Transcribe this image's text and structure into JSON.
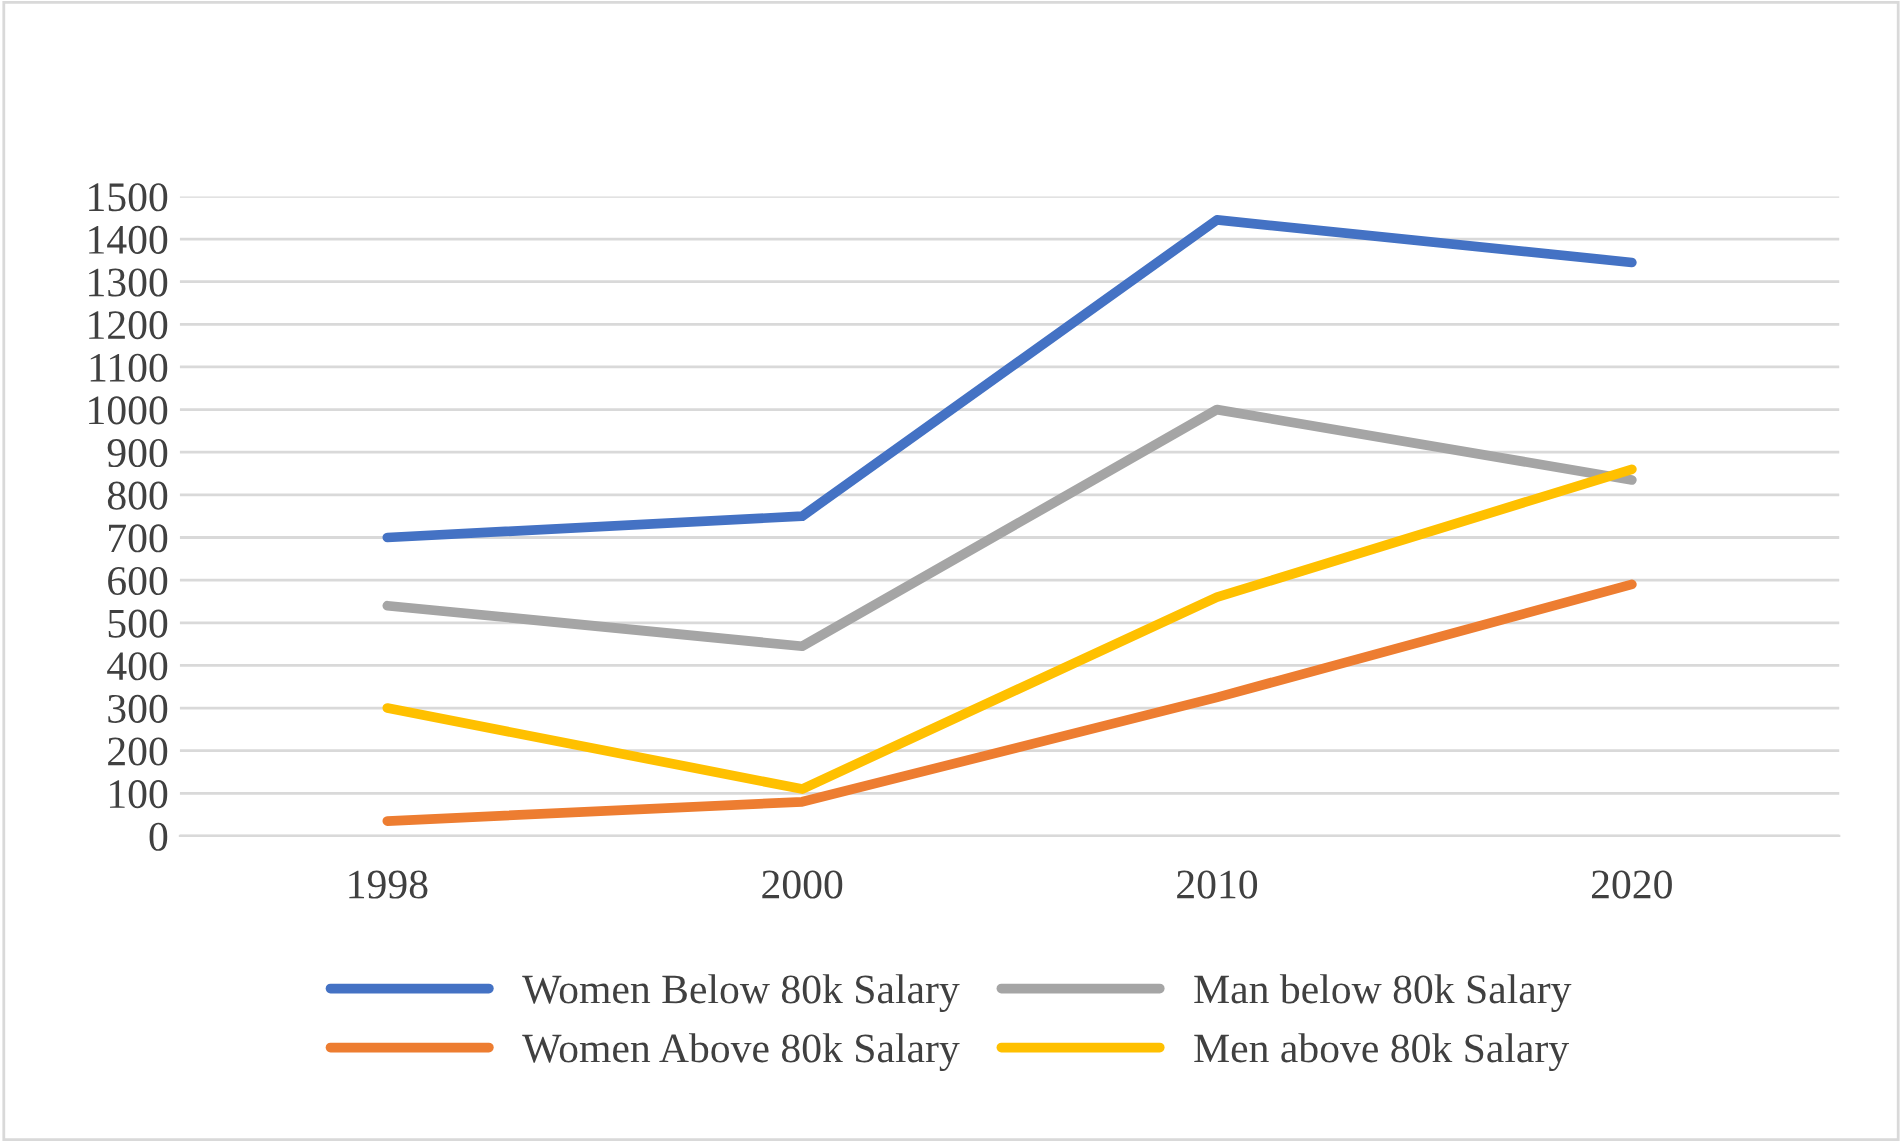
{
  "chart_data": {
    "type": "line",
    "categories": [
      "1998",
      "2000",
      "2010",
      "2020"
    ],
    "series": [
      {
        "name": "Women Below 80k Salary",
        "color": "#4472c4",
        "values": [
          700,
          750,
          1445,
          1345
        ]
      },
      {
        "name": "Women Above 80k Salary",
        "color": "#ed7d31",
        "values": [
          35,
          80,
          325,
          590
        ]
      },
      {
        "name": "Man below 80k Salary",
        "color": "#a5a5a5",
        "values": [
          540,
          445,
          1000,
          835
        ]
      },
      {
        "name": "Men above 80k Salary",
        "color": "#ffc000",
        "values": [
          300,
          110,
          560,
          860
        ]
      }
    ],
    "ylim": [
      0,
      1500
    ],
    "yticks": [
      0,
      100,
      200,
      300,
      400,
      500,
      600,
      700,
      800,
      900,
      1000,
      1100,
      1200,
      1300,
      1400,
      1500
    ],
    "grid": "y",
    "legend": "bottom",
    "marker": "none",
    "line_style": "solid"
  }
}
